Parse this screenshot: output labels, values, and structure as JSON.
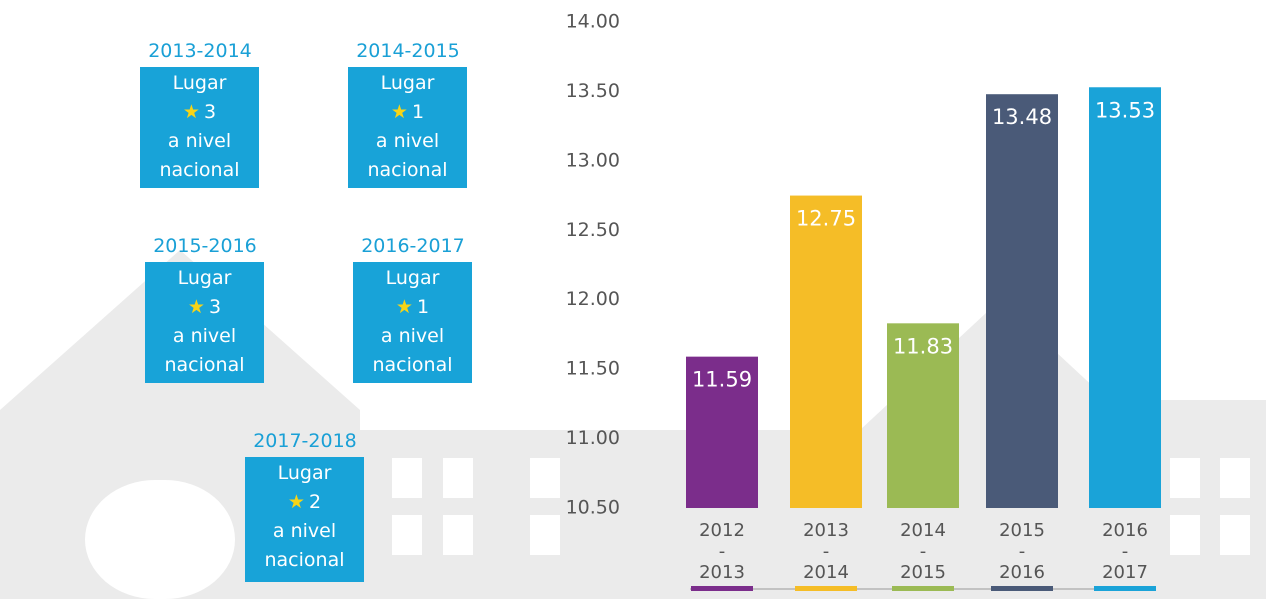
{
  "chart_data": {
    "type": "bar",
    "categories": [
      "2012 - 2013",
      "2013 - 2014",
      "2014 - 2015",
      "2015 - 2016",
      "2016 - 2017"
    ],
    "values": [
      11.59,
      12.75,
      11.83,
      13.48,
      13.53
    ],
    "colors": [
      "#7b2d8b",
      "#f5bd27",
      "#9bba54",
      "#4a5a78",
      "#1aa3d8"
    ],
    "ylim": [
      10.5,
      14
    ],
    "yticks": [
      {
        "value": 10.5,
        "label": "10.50"
      },
      {
        "value": 11,
        "label": "11.00"
      },
      {
        "value": 11.5,
        "label": "11.50"
      },
      {
        "value": 12,
        "label": "12.00"
      },
      {
        "value": 12.5,
        "label": "12.50"
      },
      {
        "value": 13,
        "label": "13.00"
      },
      {
        "value": 13.5,
        "label": "13.50"
      },
      {
        "value": 14,
        "label": "14.00"
      }
    ]
  },
  "awards": [
    {
      "period": "2013-2014",
      "label": "Lugar",
      "rank": 3,
      "scope": "a nivel nacional"
    },
    {
      "period": "2014-2015",
      "label": "Lugar",
      "rank": 1,
      "scope": "a nivel nacional"
    },
    {
      "period": "2015-2016",
      "label": "Lugar",
      "rank": 3,
      "scope": "a nivel nacional"
    },
    {
      "period": "2016-2017",
      "label": "Lugar",
      "rank": 1,
      "scope": "a nivel nacional"
    },
    {
      "period": "2017-2018",
      "label": "Lugar",
      "rank": 2,
      "scope": "a nivel nacional"
    }
  ]
}
